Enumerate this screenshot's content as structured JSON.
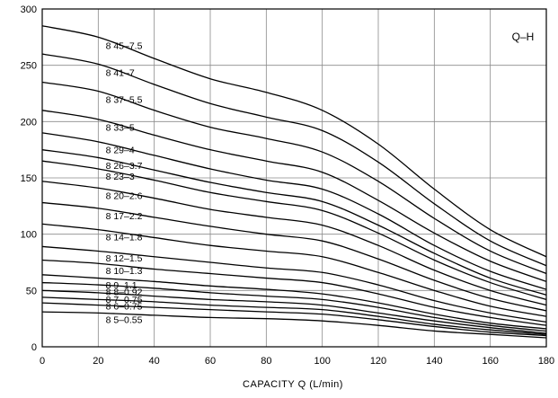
{
  "chart_data": {
    "type": "line",
    "title": "",
    "tag": "Q–H",
    "xlabel": "CAPACITY  Q (L/min)",
    "ylabel": "",
    "xlim": [
      0,
      180
    ],
    "ylim": [
      0,
      300
    ],
    "xticks": [
      "0",
      "20",
      "40",
      "60",
      "80",
      "100",
      "120",
      "140",
      "160",
      "180"
    ],
    "yticks": [
      "0",
      "50",
      "100",
      "150",
      "200",
      "250",
      "300"
    ],
    "grid": true,
    "legend": "none",
    "series": [
      {
        "name": "8 45–7.5",
        "x": [
          0,
          20,
          40,
          60,
          80,
          100,
          120,
          140,
          160,
          180
        ],
        "y": [
          285,
          275,
          256,
          238,
          226,
          210,
          180,
          140,
          104,
          80
        ]
      },
      {
        "name": "8 41–7",
        "x": [
          0,
          20,
          40,
          60,
          80,
          100,
          120,
          140,
          160,
          180
        ],
        "y": [
          260,
          251,
          233,
          216,
          204,
          192,
          164,
          127,
          94,
          72
        ]
      },
      {
        "name": "8 37–5.5",
        "x": [
          0,
          20,
          40,
          60,
          80,
          100,
          120,
          140,
          160,
          180
        ],
        "y": [
          235,
          227,
          210,
          195,
          185,
          173,
          147,
          114,
          85,
          65
        ]
      },
      {
        "name": "8 33–5",
        "x": [
          0,
          20,
          40,
          60,
          80,
          100,
          120,
          140,
          160,
          180
        ],
        "y": [
          210,
          202,
          188,
          175,
          165,
          155,
          130,
          101,
          76,
          58
        ]
      },
      {
        "name": "8 29–4",
        "x": [
          0,
          20,
          40,
          60,
          80,
          100,
          120,
          140,
          160,
          180
        ],
        "y": [
          190,
          182,
          170,
          158,
          148,
          140,
          118,
          90,
          67,
          51
        ]
      },
      {
        "name": "8 26–3.7",
        "x": [
          0,
          20,
          40,
          60,
          80,
          100,
          120,
          140,
          160,
          180
        ],
        "y": [
          175,
          168,
          157,
          146,
          137,
          129,
          108,
          83,
          61,
          46
        ]
      },
      {
        "name": "8 23–3",
        "x": [
          0,
          20,
          40,
          60,
          80,
          100,
          120,
          140,
          160,
          180
        ],
        "y": [
          165,
          158,
          148,
          137,
          129,
          121,
          101,
          77,
          57,
          42
        ]
      },
      {
        "name": "8 20–2.6",
        "x": [
          0,
          20,
          40,
          60,
          80,
          100,
          120,
          140,
          160,
          180
        ],
        "y": [
          147,
          141,
          132,
          122,
          115,
          108,
          90,
          68,
          50,
          37
        ]
      },
      {
        "name": "8 17–2.2",
        "x": [
          0,
          20,
          40,
          60,
          80,
          100,
          120,
          140,
          160,
          180
        ],
        "y": [
          128,
          123,
          115,
          107,
          100,
          94,
          78,
          59,
          43,
          32
        ]
      },
      {
        "name": "8 14–1.8",
        "x": [
          0,
          20,
          40,
          60,
          80,
          100,
          120,
          140,
          160,
          180
        ],
        "y": [
          109,
          104,
          97,
          90,
          85,
          80,
          66,
          50,
          36,
          27
        ]
      },
      {
        "name": "8 12–1.5",
        "x": [
          0,
          20,
          40,
          60,
          80,
          100,
          120,
          140,
          160,
          180
        ],
        "y": [
          89,
          85,
          80,
          75,
          70,
          66,
          55,
          41,
          30,
          22
        ]
      },
      {
        "name": "8 10–1.3",
        "x": [
          0,
          20,
          40,
          60,
          80,
          100,
          120,
          140,
          160,
          180
        ],
        "y": [
          77,
          74,
          69,
          65,
          61,
          57,
          47,
          35,
          26,
          19
        ]
      },
      {
        "name": "8 9–1.1",
        "x": [
          0,
          20,
          40,
          60,
          80,
          100,
          120,
          140,
          160,
          180
        ],
        "y": [
          64,
          61,
          58,
          54,
          51,
          47,
          39,
          29,
          21,
          16
        ]
      },
      {
        "name": "8 8–0.92",
        "x": [
          0,
          20,
          40,
          60,
          80,
          100,
          120,
          140,
          160,
          180
        ],
        "y": [
          57,
          55,
          52,
          48,
          45,
          42,
          35,
          26,
          19,
          14
        ]
      },
      {
        "name": "8 7–0.75",
        "x": [
          0,
          20,
          40,
          60,
          80,
          100,
          120,
          140,
          160,
          180
        ],
        "y": [
          50,
          48,
          45,
          42,
          40,
          37,
          30,
          23,
          17,
          12
        ]
      },
      {
        "name": "8 6–0.75",
        "x": [
          0,
          20,
          40,
          60,
          80,
          100,
          120,
          140,
          160,
          180
        ],
        "y": [
          44,
          42,
          40,
          37,
          35,
          33,
          27,
          20,
          15,
          11
        ]
      },
      {
        "name": "8 5–0.55",
        "x": [
          0,
          20,
          40,
          60,
          80,
          100,
          120,
          140,
          160,
          180
        ],
        "y": [
          39,
          37,
          35,
          33,
          31,
          29,
          24,
          18,
          13,
          10
        ]
      },
      {
        "name": "8 5–0.55",
        "x": [
          0,
          20,
          40,
          60,
          80,
          100,
          120,
          140,
          160,
          180
        ],
        "y": [
          31,
          30,
          28,
          26,
          25,
          23,
          19,
          14,
          11,
          8
        ]
      }
    ],
    "label_series": [
      0,
      1,
      2,
      3,
      4,
      5,
      6,
      7,
      8,
      9,
      10,
      11,
      12,
      13,
      14,
      15,
      17
    ]
  }
}
